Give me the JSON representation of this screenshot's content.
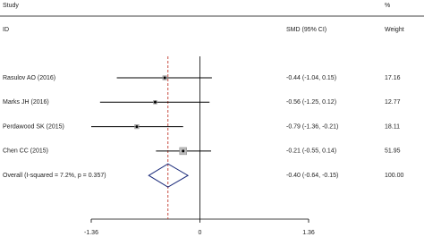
{
  "chart_data": {
    "type": "forest",
    "column_headers": {
      "study": "Study",
      "percent": "%",
      "id": "ID",
      "effect": "SMD (95% CI)",
      "weight": "Weight"
    },
    "studies": [
      {
        "name": "Rasulov AO (2016)",
        "estimate": -0.44,
        "lower": -1.04,
        "upper": 0.15,
        "label": "-0.44 (-1.04, 0.15)",
        "weight": 17.16
      },
      {
        "name": "Marks JH (2016)",
        "estimate": -0.56,
        "lower": -1.25,
        "upper": 0.12,
        "label": "-0.56 (-1.25, 0.12)",
        "weight": 12.77
      },
      {
        "name": "Perdawood SK (2015)",
        "estimate": -0.79,
        "lower": -1.36,
        "upper": -0.21,
        "label": "-0.79 (-1.36, -0.21)",
        "weight": 18.11
      },
      {
        "name": "Chen CC (2015)",
        "estimate": -0.21,
        "lower": -0.55,
        "upper": 0.14,
        "label": "-0.21 (-0.55, 0.14)",
        "weight": 51.95
      }
    ],
    "overall": {
      "name": "Overall  (I-squared = 7.2%, p = 0.357)",
      "estimate": -0.4,
      "lower": -0.64,
      "upper": -0.15,
      "label": "-0.40 (-0.64, -0.15)",
      "weight": 100,
      "weight_label": "100.00"
    },
    "xlim": [
      -1.36,
      1.36
    ],
    "xticks": [
      -1.36,
      0,
      1.36
    ],
    "reference_color": "#c0392b",
    "diamond_color": "#1a2a7a",
    "color": "#000000"
  }
}
